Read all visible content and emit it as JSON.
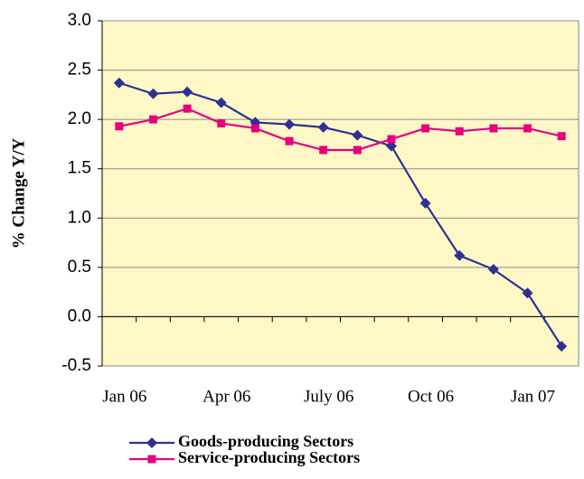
{
  "chart_data": {
    "type": "line",
    "y_label": "% Change Y/Y",
    "categories": [
      "Jan 06",
      null,
      null,
      "Apr 06",
      null,
      null,
      "July 06",
      null,
      null,
      "Oct 06",
      null,
      null,
      "Jan 07",
      null
    ],
    "series": [
      {
        "name": "Goods-producing Sectors",
        "color": "#2e3192",
        "marker": "diamond",
        "values": [
          2.37,
          2.26,
          2.28,
          2.17,
          1.97,
          1.95,
          1.92,
          1.84,
          1.73,
          1.15,
          0.62,
          0.48,
          0.24,
          -0.3
        ]
      },
      {
        "name": "Service-producing Sectors",
        "color": "#e6007e",
        "marker": "square",
        "values": [
          1.93,
          2.0,
          2.11,
          1.96,
          1.91,
          1.78,
          1.69,
          1.69,
          1.8,
          1.91,
          1.88,
          1.91,
          1.91,
          1.83
        ]
      }
    ],
    "ylim": [
      -0.5,
      3.0
    ],
    "yticks": [
      -0.5,
      {
        "value": 0,
        "label": "0.0"
      },
      0.5,
      {
        "value": 1,
        "label": "1.0"
      },
      1.5,
      {
        "value": 2,
        "label": "2.0"
      },
      2.5,
      {
        "value": 3,
        "label": "3.0"
      }
    ],
    "grid": true,
    "background": "#fff8c6"
  }
}
